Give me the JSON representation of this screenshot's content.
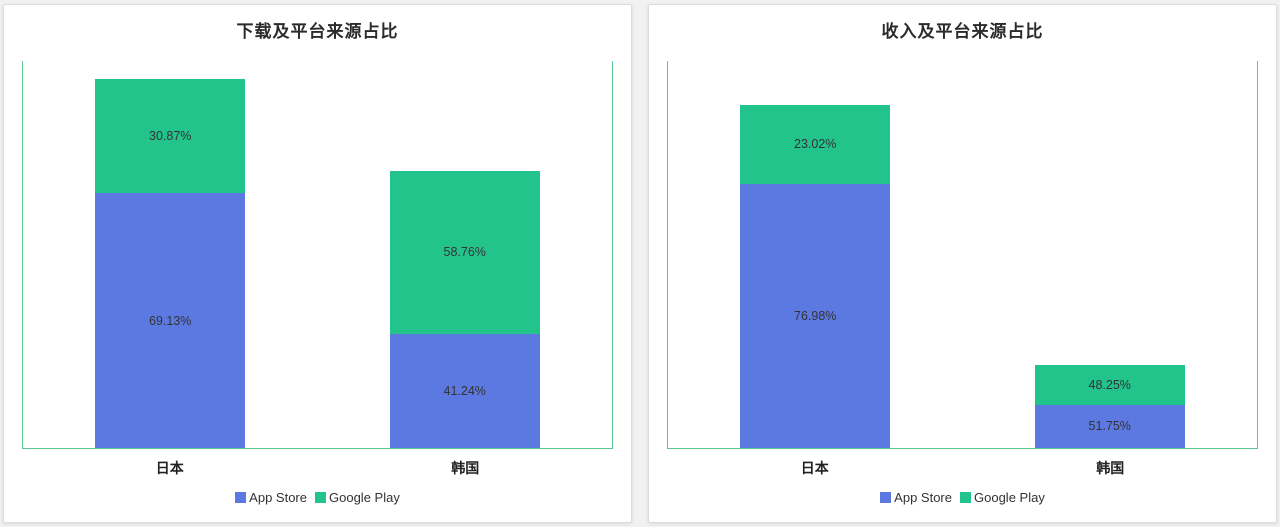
{
  "page": {
    "background": "#f2f2f2",
    "panel_border": "#dcdcdc"
  },
  "colors": {
    "app_store_blue": "#5b79e0",
    "google_play_green": "#23c38c",
    "axis_frame_green": "#5bc493",
    "value_label_text": "#333333",
    "title_text": "#2b2b2b"
  },
  "chart_data": [
    {
      "type": "bar",
      "stacked": true,
      "title": "下载及平台来源占比",
      "categories": [
        "日本",
        "韩国"
      ],
      "series": [
        {
          "name": "App Store",
          "color": "#5b79e0",
          "values": [
            69.13,
            41.24
          ]
        },
        {
          "name": "Google Play",
          "color": "#23c38c",
          "values": [
            30.87,
            58.76
          ]
        }
      ],
      "value_label_format": "{value}%",
      "ylim": [
        0,
        100
      ],
      "grid": false,
      "bar_total_height_frac": [
        0.95,
        0.715
      ],
      "legend": {
        "position": "bottom",
        "items": [
          "App Store",
          "Google Play"
        ]
      }
    },
    {
      "type": "bar",
      "stacked": true,
      "title": "收入及平台来源占比",
      "categories": [
        "日本",
        "韩国"
      ],
      "series": [
        {
          "name": "App Store",
          "color": "#5b79e0",
          "values": [
            76.98,
            51.75
          ]
        },
        {
          "name": "Google Play",
          "color": "#23c38c",
          "values": [
            23.02,
            48.25
          ]
        }
      ],
      "value_label_format": "{value}%",
      "ylim": [
        0,
        100
      ],
      "grid": false,
      "bar_total_height_frac": [
        0.885,
        0.215
      ],
      "legend": {
        "position": "bottom",
        "items": [
          "App Store",
          "Google Play"
        ]
      }
    }
  ]
}
